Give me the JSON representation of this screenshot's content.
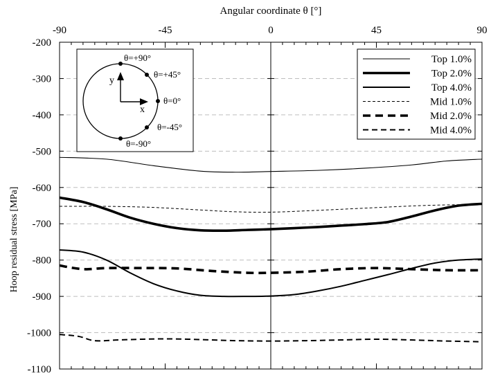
{
  "chart_data": {
    "type": "line",
    "title": "",
    "xlabel": "Angular coordinate θ [°]",
    "ylabel": "Hoop residual  stress [MPa]",
    "xlim": [
      -90,
      90
    ],
    "ylim": [
      -1100,
      -200
    ],
    "x_axis_position": "top",
    "x_ticks": [
      -90,
      -45,
      0,
      45,
      90
    ],
    "x_tick_labels": [
      "-90",
      "-45",
      "0",
      "45",
      "90"
    ],
    "y_ticks": [
      -200,
      -300,
      -400,
      -500,
      -600,
      -700,
      -800,
      -900,
      -1000,
      -1100
    ],
    "y_tick_labels": [
      "-200",
      "-300",
      "-400",
      "-500",
      "-600",
      "-700",
      "-800",
      "-900",
      "-1000",
      "-1100"
    ],
    "grid": "horizontal dashed",
    "legend_position": "top-right",
    "series": [
      {
        "name": "Top 1.0%",
        "style": "thin-solid",
        "color": "#000000",
        "x": [
          -90,
          -70,
          -50,
          -30,
          -15,
          0,
          20,
          40,
          60,
          75,
          90
        ],
        "y": [
          -517,
          -522,
          -540,
          -555,
          -558,
          -556,
          -553,
          -547,
          -538,
          -527,
          -522
        ]
      },
      {
        "name": "Top 2.0%",
        "style": "thick-solid",
        "color": "#000000",
        "x": [
          -90,
          -80,
          -70,
          -60,
          -50,
          -40,
          -30,
          -20,
          -10,
          0,
          10,
          20,
          30,
          40,
          50,
          60,
          70,
          80,
          90
        ],
        "y": [
          -628,
          -640,
          -660,
          -683,
          -700,
          -712,
          -718,
          -719,
          -717,
          -715,
          -712,
          -709,
          -705,
          -701,
          -695,
          -680,
          -663,
          -650,
          -645
        ]
      },
      {
        "name": "Top 4.0%",
        "style": "medium-solid",
        "color": "#000000",
        "x": [
          -90,
          -80,
          -70,
          -60,
          -50,
          -40,
          -30,
          -20,
          -10,
          0,
          10,
          20,
          30,
          40,
          50,
          60,
          70,
          80,
          90
        ],
        "y": [
          -772,
          -778,
          -800,
          -835,
          -865,
          -885,
          -897,
          -900,
          -900,
          -899,
          -895,
          -885,
          -872,
          -856,
          -840,
          -823,
          -808,
          -800,
          -797
        ]
      },
      {
        "name": "Mid 1.0%",
        "style": "thin-dashed",
        "color": "#000000",
        "x": [
          -90,
          -70,
          -50,
          -30,
          -15,
          0,
          20,
          40,
          60,
          75,
          90
        ],
        "y": [
          -652,
          -652,
          -655,
          -662,
          -667,
          -668,
          -663,
          -657,
          -651,
          -648,
          -647
        ]
      },
      {
        "name": "Mid 2.0%",
        "style": "thick-dashed",
        "color": "#000000",
        "x": [
          -90,
          -80,
          -70,
          -55,
          -40,
          -25,
          -10,
          0,
          15,
          30,
          45,
          60,
          75,
          90
        ],
        "y": [
          -815,
          -825,
          -822,
          -822,
          -823,
          -830,
          -835,
          -835,
          -832,
          -825,
          -822,
          -825,
          -828,
          -828
        ]
      },
      {
        "name": "Mid 4.0%",
        "style": "medium-dashed",
        "color": "#000000",
        "x": [
          -90,
          -82,
          -75,
          -65,
          -55,
          -45,
          -35,
          -25,
          -15,
          0,
          15,
          30,
          45,
          60,
          75,
          90
        ],
        "y": [
          -1005,
          -1010,
          -1022,
          -1020,
          -1018,
          -1017,
          -1018,
          -1020,
          -1022,
          -1023,
          -1022,
          -1020,
          -1018,
          -1020,
          -1023,
          -1025
        ]
      }
    ],
    "inset": {
      "points": [
        "θ=+90°",
        "θ=+45°",
        "θ=0°",
        "θ=-45°",
        "θ=-90°"
      ],
      "axis_labels": {
        "y": "y",
        "x": "x"
      }
    }
  }
}
